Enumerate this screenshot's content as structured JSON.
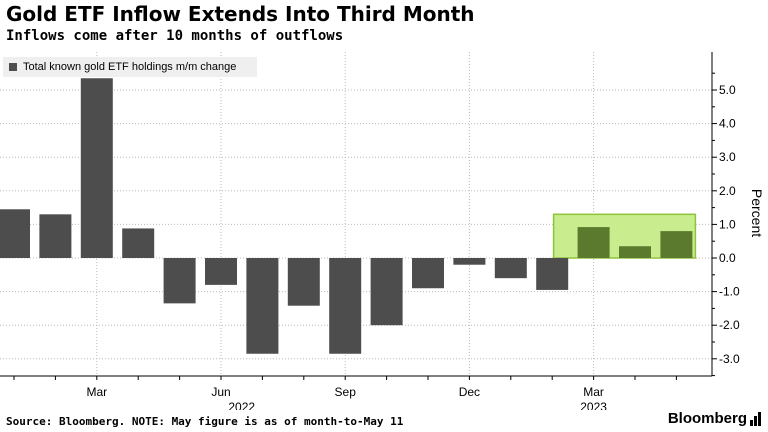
{
  "header": {
    "title": "Gold ETF Inflow Extends Into Third Month",
    "subtitle": "Inflows come after 10 months of outflows"
  },
  "footer": {
    "source": "Source: Bloomberg. NOTE: May figure is as of month-to-May 11",
    "brand": "Bloomberg"
  },
  "chart_data": {
    "type": "bar",
    "categories": [
      "2022-01",
      "2022-02",
      "2022-03",
      "2022-04",
      "2022-05",
      "2022-06",
      "2022-07",
      "2022-08",
      "2022-09",
      "2022-10",
      "2022-11",
      "2022-12",
      "2023-01",
      "2023-02",
      "2023-03",
      "2023-04",
      "2023-05"
    ],
    "series": [
      {
        "name": "Total known gold ETF holdings m/m change",
        "values": [
          1.45,
          1.3,
          5.35,
          0.88,
          -1.35,
          -0.8,
          -2.85,
          -1.42,
          -2.85,
          -2.0,
          -0.9,
          -0.2,
          -0.6,
          -0.95,
          0.92,
          0.35,
          0.8
        ]
      }
    ],
    "ylabel": "Percent",
    "ylim": [
      -3.6,
      6.0
    ],
    "yticks": [
      -3.0,
      -2.0,
      -1.0,
      0.0,
      1.0,
      2.0,
      3.0,
      4.0,
      5.0
    ],
    "ytick_labels": [
      "-3.0",
      "-2.0",
      "-1.0",
      "0.0",
      "1.0",
      "2.0",
      "3.0",
      "4.0",
      "5.0"
    ],
    "x_tick_labels": [
      {
        "index": 2,
        "label": "Mar"
      },
      {
        "index": 5,
        "label": "Jun"
      },
      {
        "index": 8,
        "label": "Sep"
      },
      {
        "index": 11,
        "label": "Dec"
      },
      {
        "index": 14,
        "label": "Mar"
      }
    ],
    "year_labels": [
      {
        "index": 5.5,
        "label": "2022"
      },
      {
        "index": 14,
        "label": "2023"
      }
    ],
    "highlight": {
      "from_index": 14,
      "to_index": 16,
      "ymin": 0.0,
      "ymax": 1.3
    },
    "colors": {
      "bar": "#4d4d4d",
      "bar_highlight": "#5b7a2e",
      "highlight_fill": "#c8ec8e",
      "highlight_stroke": "#8fc43a",
      "grid": "#bbbbbb"
    },
    "grid": true,
    "y_axis_side": "right",
    "legend_position": "top-left"
  }
}
